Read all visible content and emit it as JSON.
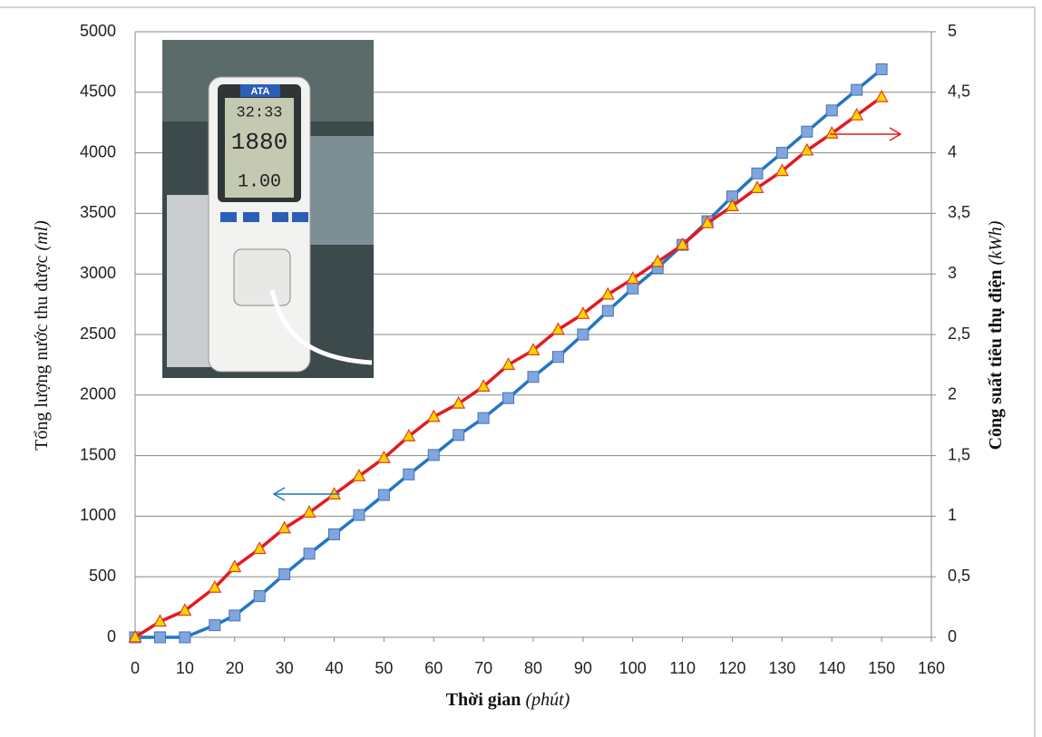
{
  "chart_data": {
    "type": "line",
    "x_label": "Thời gian",
    "x_label_unit": "(phút)",
    "y_label": "Tổng lượng nước thu được",
    "y_label_unit": "(ml)",
    "y2_label": "Công suất tiêu thụ điện",
    "y2_label_unit": "(kWh)",
    "x": [
      0,
      5,
      10,
      16,
      20,
      25,
      30,
      35,
      40,
      45,
      50,
      55,
      60,
      65,
      70,
      75,
      80,
      85,
      90,
      95,
      100,
      105,
      110,
      115,
      120,
      125,
      130,
      135,
      140,
      145,
      150
    ],
    "xlim": [
      0,
      160
    ],
    "xticks": [
      0,
      10,
      20,
      30,
      40,
      50,
      60,
      70,
      80,
      90,
      100,
      110,
      120,
      130,
      140,
      150,
      160
    ],
    "ylim": [
      0,
      5000
    ],
    "yticks": [
      0,
      500,
      1000,
      1500,
      2000,
      2500,
      3000,
      3500,
      4000,
      4500,
      5000
    ],
    "y2lim": [
      0,
      5
    ],
    "y2ticks": [
      0,
      {
        "value": 0.5,
        "label": "0,5"
      },
      1,
      {
        "value": 1.5,
        "label": "1,5"
      },
      2,
      {
        "value": 2.5,
        "label": "2,5"
      },
      3,
      {
        "value": 3.5,
        "label": "3,5"
      },
      4,
      {
        "value": 4.5,
        "label": "4,5"
      },
      5
    ],
    "grid": true,
    "series": [
      {
        "color": "#1f77c4",
        "marker": "square",
        "marker_color": "#7fa7df",
        "values": [
          0,
          0,
          0,
          100,
          180,
          340,
          520,
          690,
          850,
          1010,
          1175,
          1345,
          1505,
          1670,
          1810,
          1975,
          2150,
          2315,
          2500,
          2695,
          2880,
          3050,
          3240,
          3435,
          3640,
          3830,
          4000,
          4175,
          4350,
          4520,
          4690
        ]
      },
      {
        "color": "#e4191f",
        "marker": "triangle",
        "marker_color": "#ffd400",
        "axis": "y2",
        "values": [
          0,
          0.13,
          0.22,
          0.41,
          0.58,
          0.73,
          0.9,
          1.03,
          1.18,
          1.33,
          1.48,
          1.66,
          1.82,
          1.93,
          2.07,
          2.25,
          2.37,
          2.54,
          2.67,
          2.83,
          2.96,
          3.1,
          3.24,
          3.42,
          3.56,
          3.71,
          3.85,
          4.02,
          4.16,
          4.31,
          4.46
        ]
      }
    ],
    "photo": {
      "brand": "ATA",
      "readings": [
        "32:33",
        "1880",
        "1.00"
      ]
    }
  }
}
